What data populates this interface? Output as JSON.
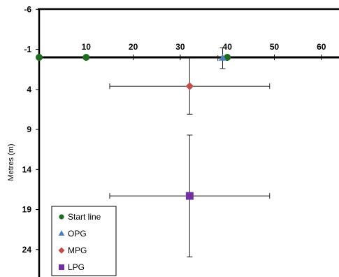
{
  "chart_data": {
    "type": "scatter",
    "title": "",
    "xlabel": "",
    "ylabel": "Metres (m)",
    "xlim": [
      0,
      64
    ],
    "ylim": [
      -6,
      26
    ],
    "y_inverted": true,
    "xticks": [
      10,
      20,
      30,
      40,
      50,
      60
    ],
    "yticks": [
      -6,
      -1,
      4,
      9,
      14,
      19,
      24
    ],
    "grid": false,
    "legend_position": "bottom-left",
    "series": [
      {
        "name": "Start line",
        "marker": "circle",
        "color": "#1f6b21",
        "points": [
          {
            "x": 0,
            "y": 0
          },
          {
            "x": 10,
            "y": 0
          },
          {
            "x": 40,
            "y": 0
          }
        ]
      },
      {
        "name": "OPG",
        "marker": "triangle",
        "color": "#4f81bd",
        "points": [
          {
            "x": 39,
            "y": 0.1,
            "xerr": 1,
            "yerr": 1.3
          }
        ]
      },
      {
        "name": "MPG",
        "marker": "diamond",
        "color": "#c0504d",
        "points": [
          {
            "x": 32,
            "y": 3.6,
            "xerr": 17,
            "yerr": 3.5
          }
        ]
      },
      {
        "name": "LPG",
        "marker": "square",
        "color": "#7030a0",
        "points": [
          {
            "x": 32,
            "y": 17.3,
            "xerr": 17,
            "yerr": 7.6
          }
        ]
      }
    ]
  }
}
